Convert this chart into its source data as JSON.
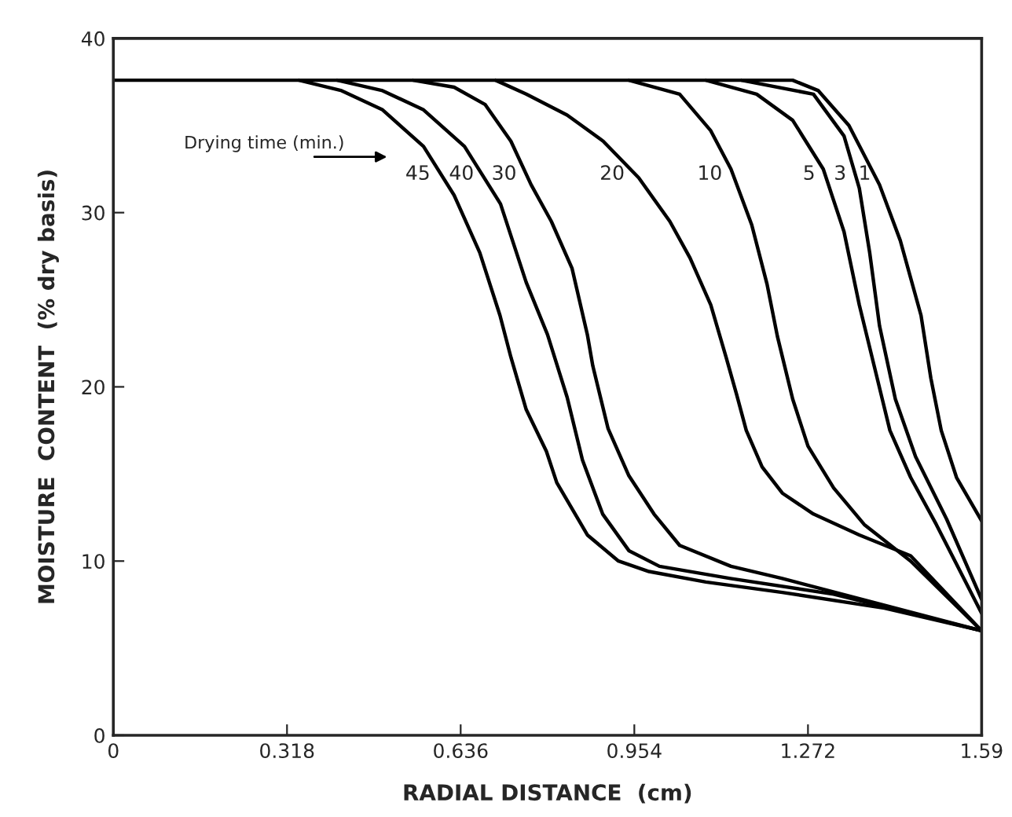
{
  "chart_data": {
    "type": "line",
    "xlabel": "RADIAL DISTANCE  (cm)",
    "ylabel": "MOISTURE  CONTENT  (% dry basis)",
    "xlim": [
      0,
      1.59
    ],
    "ylim": [
      0,
      40
    ],
    "xticks": [
      0,
      0.318,
      0.636,
      0.954,
      1.272,
      1.59
    ],
    "yticks": [
      0,
      10,
      20,
      30,
      40
    ],
    "grid": false,
    "legend": false,
    "marker": "none",
    "line_style": "solid",
    "series": [
      {
        "name": "45",
        "color": "#000000",
        "x": [
          0.34,
          0.418,
          0.493,
          0.568,
          0.624,
          0.671,
          0.708,
          0.728,
          0.756,
          0.793,
          0.812,
          0.868,
          0.925,
          0.981,
          1.085,
          1.225,
          1.412,
          1.59
        ],
        "values": [
          37.6,
          37.0,
          35.9,
          33.8,
          31.0,
          27.7,
          24.1,
          21.7,
          18.7,
          16.3,
          14.5,
          11.5,
          10.0,
          9.4,
          8.8,
          8.2,
          7.3,
          6.0
        ]
      },
      {
        "name": "40",
        "color": "#000000",
        "x": [
          0.41,
          0.493,
          0.568,
          0.643,
          0.709,
          0.756,
          0.795,
          0.831,
          0.859,
          0.896,
          0.944,
          1.0,
          1.13,
          1.319,
          1.59
        ],
        "values": [
          37.6,
          37.0,
          35.9,
          33.8,
          30.5,
          26.0,
          23.0,
          19.4,
          15.8,
          12.7,
          10.6,
          9.7,
          9.0,
          8.1,
          6.0
        ]
      },
      {
        "name": "30",
        "color": "#000000",
        "x": [
          0.549,
          0.624,
          0.681,
          0.728,
          0.765,
          0.802,
          0.84,
          0.868,
          0.878,
          0.906,
          0.944,
          0.99,
          1.037,
          1.131,
          1.225,
          1.59
        ],
        "values": [
          37.6,
          37.2,
          36.2,
          34.1,
          31.6,
          29.5,
          26.8,
          23.0,
          21.2,
          17.6,
          14.9,
          12.7,
          10.9,
          9.7,
          9.0,
          6.0
        ]
      },
      {
        "name": "20",
        "color": "#000000",
        "x": [
          0.7,
          0.756,
          0.831,
          0.897,
          0.962,
          1.019,
          1.056,
          1.094,
          1.122,
          1.141,
          1.159,
          1.188,
          1.225,
          1.282,
          1.366,
          1.46,
          1.59
        ],
        "values": [
          37.6,
          36.8,
          35.6,
          34.1,
          32.0,
          29.5,
          27.4,
          24.7,
          21.7,
          19.6,
          17.5,
          15.4,
          13.9,
          12.7,
          11.5,
          10.3,
          6.0
        ]
      },
      {
        "name": "10",
        "color": "#000000",
        "x": [
          0.944,
          1.037,
          1.094,
          1.131,
          1.169,
          1.197,
          1.216,
          1.244,
          1.272,
          1.319,
          1.375,
          1.46,
          1.59
        ],
        "values": [
          37.6,
          36.8,
          34.7,
          32.5,
          29.3,
          25.9,
          22.9,
          19.3,
          16.6,
          14.2,
          12.1,
          10.0,
          6.0
        ]
      },
      {
        "name": "5",
        "color": "#000000",
        "x": [
          1.085,
          1.178,
          1.244,
          1.3,
          1.338,
          1.366,
          1.394,
          1.422,
          1.46,
          1.507,
          1.59
        ],
        "values": [
          37.6,
          36.8,
          35.3,
          32.5,
          28.9,
          24.7,
          21.1,
          17.5,
          14.8,
          12.1,
          7.0
        ]
      },
      {
        "name": "3",
        "color": "#000000",
        "x": [
          1.15,
          1.282,
          1.338,
          1.366,
          1.385,
          1.403,
          1.432,
          1.469,
          1.526,
          1.59
        ],
        "values": [
          37.6,
          36.8,
          34.4,
          31.4,
          27.7,
          23.5,
          19.3,
          16.0,
          12.4,
          7.8
        ]
      },
      {
        "name": "1",
        "color": "#000000",
        "x": [
          0,
          1.244,
          1.291,
          1.347,
          1.403,
          1.441,
          1.479,
          1.497,
          1.516,
          1.544,
          1.59
        ],
        "values": [
          37.6,
          37.6,
          37.0,
          35.0,
          31.6,
          28.4,
          24.1,
          20.5,
          17.5,
          14.8,
          12.3
        ]
      }
    ],
    "annotations": [
      "Drying time (min.)"
    ]
  }
}
